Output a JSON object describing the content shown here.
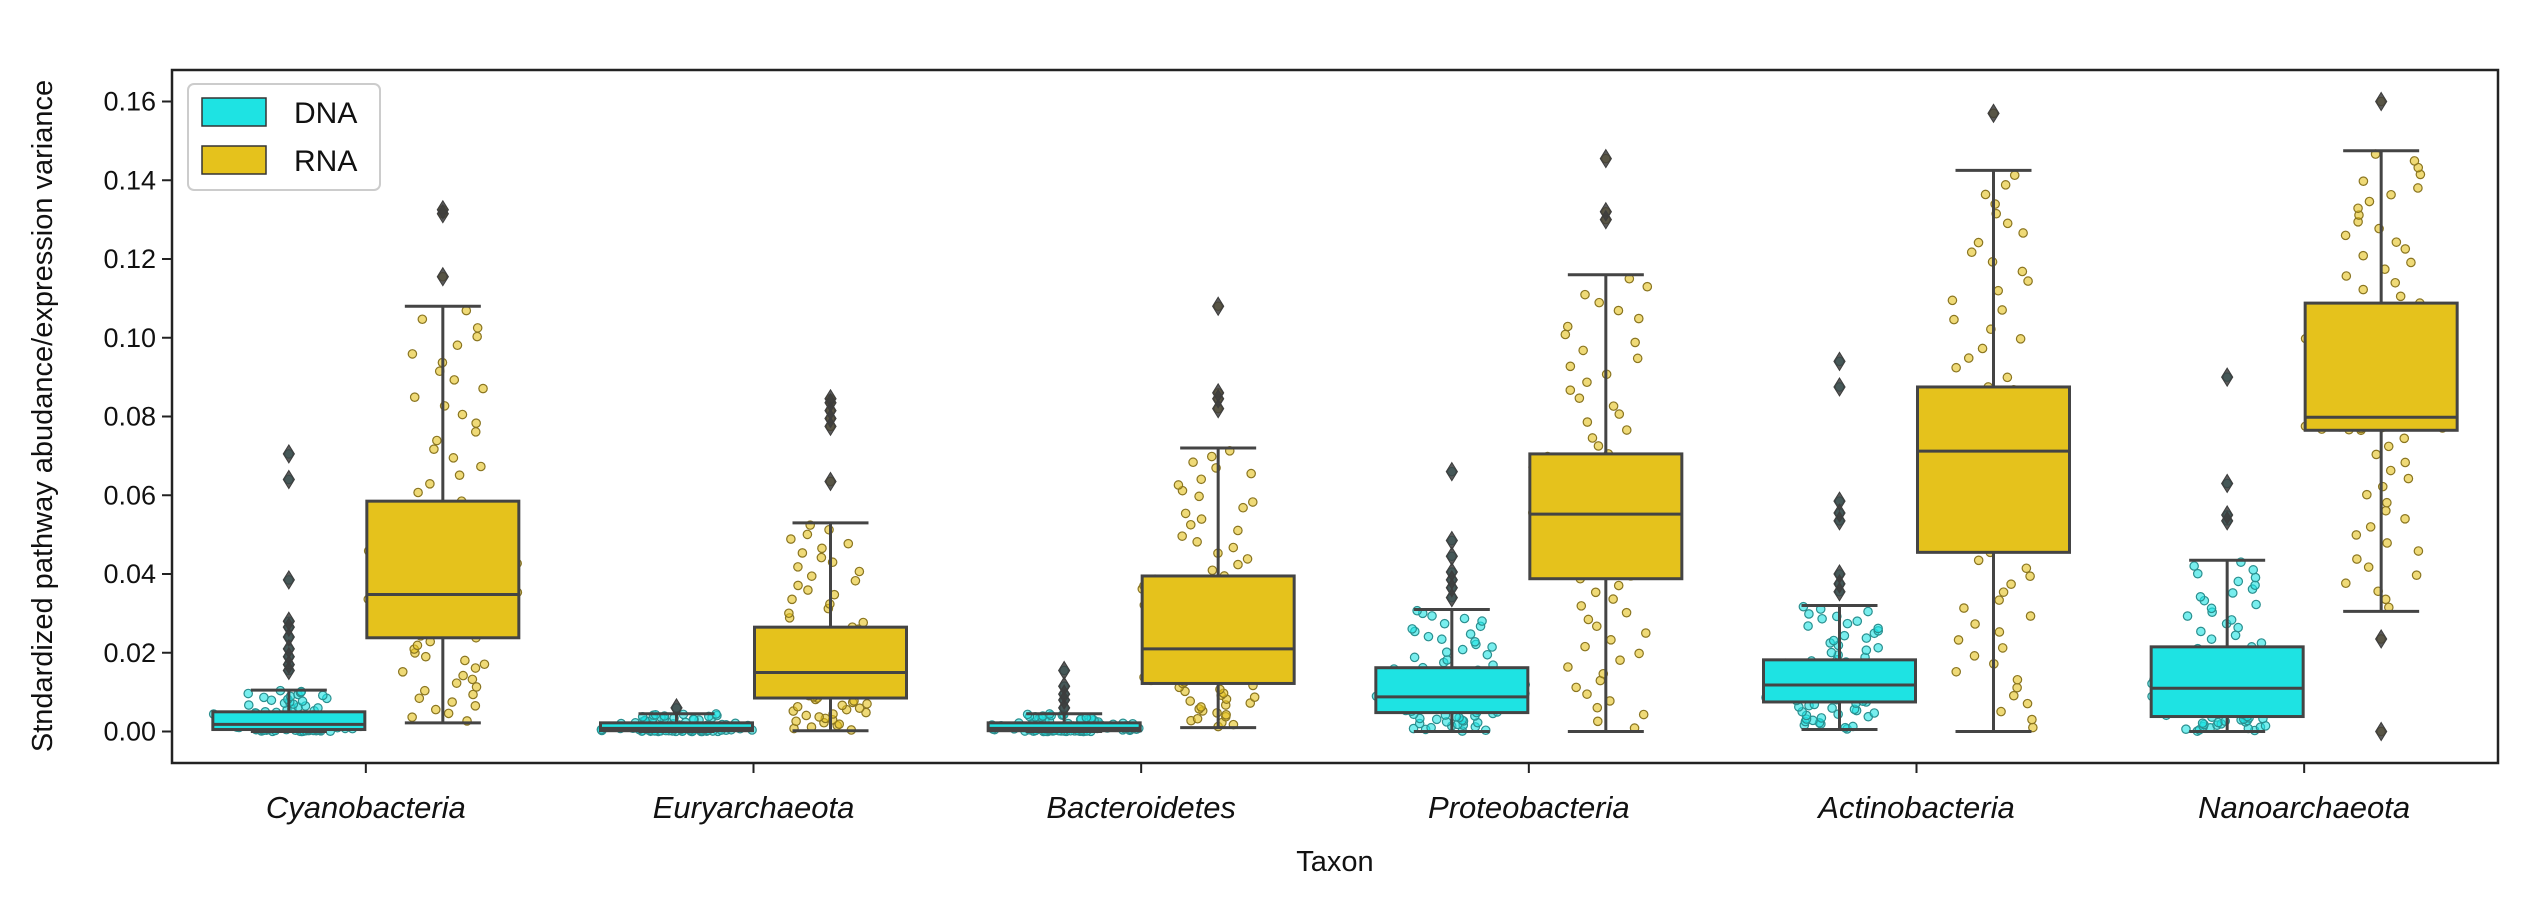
{
  "chart_data": {
    "type": "box",
    "xlabel": "Taxon",
    "ylabel": "Stndardized pathway abudance/expression variance",
    "ylim": [
      -0.008,
      0.168
    ],
    "yticks": [
      0.0,
      0.02,
      0.04,
      0.06,
      0.08,
      0.1,
      0.12,
      0.14,
      0.16
    ],
    "ytick_labels": [
      "0.00",
      "0.02",
      "0.04",
      "0.06",
      "0.08",
      "0.10",
      "0.12",
      "0.14",
      "0.16"
    ],
    "categories": [
      "Cyanobacteria",
      "Euryarchaeota",
      "Bacteroidetes",
      "Proteobacteria",
      "Actinobacteria",
      "Nanoarchaeota"
    ],
    "legend": {
      "position": "top-left"
    },
    "grid": false,
    "series": [
      {
        "name": "DNA",
        "color": "#1ee3e3",
        "boxes": [
          {
            "whisker_low": 0.0,
            "q1": 0.0005,
            "median": 0.0018,
            "q3": 0.005,
            "whisker_high": 0.0105,
            "outliers": [
              0.0155,
              0.017,
              0.019,
              0.021,
              0.024,
              0.0265,
              0.028,
              0.0385,
              0.064,
              0.0705
            ]
          },
          {
            "whisker_low": 0.0,
            "q1": 0.0002,
            "median": 0.0008,
            "q3": 0.0022,
            "whisker_high": 0.0045,
            "outliers": [
              0.006
            ]
          },
          {
            "whisker_low": 0.0,
            "q1": 0.0002,
            "median": 0.0008,
            "q3": 0.0022,
            "whisker_high": 0.0045,
            "outliers": [
              0.006,
              0.008,
              0.0095,
              0.0115,
              0.0155
            ]
          },
          {
            "whisker_low": 0.0,
            "q1": 0.0048,
            "median": 0.0088,
            "q3": 0.0162,
            "whisker_high": 0.031,
            "outliers": [
              0.034,
              0.0365,
              0.0385,
              0.0405,
              0.0445,
              0.0485,
              0.066
            ]
          },
          {
            "whisker_low": 0.0005,
            "q1": 0.0075,
            "median": 0.0118,
            "q3": 0.0182,
            "whisker_high": 0.032,
            "outliers": [
              0.0355,
              0.0375,
              0.04,
              0.0535,
              0.0555,
              0.0585,
              0.0875,
              0.094
            ]
          },
          {
            "whisker_low": 0.0,
            "q1": 0.0038,
            "median": 0.011,
            "q3": 0.0215,
            "whisker_high": 0.0435,
            "outliers": [
              0.0535,
              0.055,
              0.063,
              0.09
            ]
          }
        ]
      },
      {
        "name": "RNA",
        "color": "#e5c21c",
        "boxes": [
          {
            "whisker_low": 0.0022,
            "q1": 0.0238,
            "median": 0.0348,
            "q3": 0.0585,
            "whisker_high": 0.108,
            "outliers": [
              0.1155,
              0.1315,
              0.1325
            ]
          },
          {
            "whisker_low": 0.0002,
            "q1": 0.0085,
            "median": 0.015,
            "q3": 0.0265,
            "whisker_high": 0.053,
            "outliers": [
              0.0635,
              0.0775,
              0.0795,
              0.0815,
              0.0835,
              0.0845
            ]
          },
          {
            "whisker_low": 0.001,
            "q1": 0.0122,
            "median": 0.021,
            "q3": 0.0395,
            "whisker_high": 0.072,
            "outliers": [
              0.082,
              0.0845,
              0.086,
              0.108
            ]
          },
          {
            "whisker_low": 0.0,
            "q1": 0.0388,
            "median": 0.0552,
            "q3": 0.0705,
            "whisker_high": 0.116,
            "outliers": [
              0.13,
              0.132,
              0.1455
            ]
          },
          {
            "whisker_low": 0.0,
            "q1": 0.0455,
            "median": 0.0712,
            "q3": 0.0875,
            "whisker_high": 0.1425,
            "outliers": [
              0.157
            ]
          },
          {
            "whisker_low": 0.0305,
            "q1": 0.0765,
            "median": 0.0798,
            "q3": 0.1088,
            "whisker_high": 0.1475,
            "outliers": [
              0.0,
              0.0235,
              0.16
            ]
          }
        ]
      }
    ]
  }
}
